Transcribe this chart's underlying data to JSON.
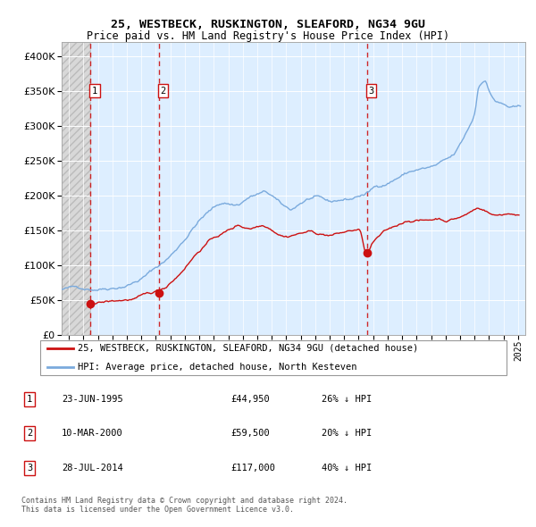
{
  "title1": "25, WESTBECK, RUSKINGTON, SLEAFORD, NG34 9GU",
  "title2": "Price paid vs. HM Land Registry's House Price Index (HPI)",
  "ylim": [
    0,
    420000
  ],
  "yticks": [
    0,
    50000,
    100000,
    150000,
    200000,
    250000,
    300000,
    350000,
    400000
  ],
  "ytick_labels": [
    "£0",
    "£50K",
    "£100K",
    "£150K",
    "£200K",
    "£250K",
    "£300K",
    "£350K",
    "£400K"
  ],
  "xmin": 1993.5,
  "xmax": 2025.5,
  "hpi_color": "#7aaadd",
  "price_color": "#cc1111",
  "sale_dates": [
    1995.48,
    2000.19,
    2014.57
  ],
  "sale_prices": [
    44950,
    59500,
    117000
  ],
  "sale_labels": [
    "1",
    "2",
    "3"
  ],
  "legend_line1": "25, WESTBECK, RUSKINGTON, SLEAFORD, NG34 9GU (detached house)",
  "legend_line2": "HPI: Average price, detached house, North Kesteven",
  "table_rows": [
    {
      "num": "1",
      "date": "23-JUN-1995",
      "price": "£44,950",
      "pct": "26% ↓ HPI"
    },
    {
      "num": "2",
      "date": "10-MAR-2000",
      "price": "£59,500",
      "pct": "20% ↓ HPI"
    },
    {
      "num": "3",
      "date": "28-JUL-2014",
      "price": "£117,000",
      "pct": "40% ↓ HPI"
    }
  ],
  "footer": "Contains HM Land Registry data © Crown copyright and database right 2024.\nThis data is licensed under the Open Government Licence v3.0.",
  "chart_bg": "#ddeeff",
  "hatch_bg": "#d8d8d8"
}
